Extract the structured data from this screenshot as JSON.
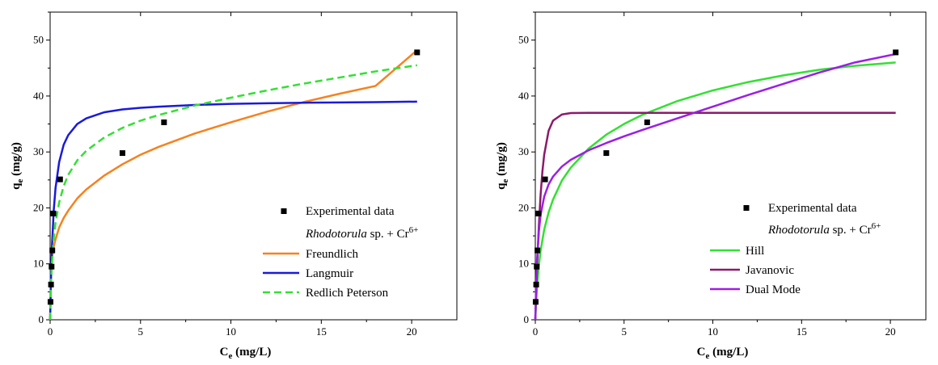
{
  "chart_data": [
    {
      "type": "scatter",
      "xlabel": {
        "main": "C",
        "sub": "e",
        "rest": " (mg/L)"
      },
      "ylabel": {
        "main": "q",
        "sub": "e",
        "rest": " (mg/g)"
      },
      "xlim": [
        0,
        22.5
      ],
      "ylim": [
        0,
        55
      ],
      "xticks": [
        0,
        5,
        10,
        15,
        20
      ],
      "yticks": [
        0,
        10,
        20,
        30,
        40,
        50
      ],
      "grid": false,
      "legend_position": "bottom-right",
      "experimental": {
        "name": "Experimental data",
        "x": [
          0.02,
          0.05,
          0.08,
          0.12,
          0.18,
          0.55,
          4.0,
          6.3,
          20.3
        ],
        "y": [
          3.2,
          6.3,
          9.5,
          12.4,
          19.0,
          25.1,
          29.8,
          35.3,
          47.8
        ]
      },
      "annotation": {
        "italic": "Rhodotorula",
        "rest": " sp. + Cr",
        "sup": "6+"
      },
      "series": [
        {
          "name": "Freundlich",
          "color": "#f5821f",
          "dash": false,
          "x": [
            0,
            0.05,
            0.1,
            0.2,
            0.3,
            0.5,
            0.75,
            1,
            1.5,
            2,
            3,
            4,
            5,
            6,
            8,
            10,
            12,
            14,
            16,
            18,
            20.3
          ],
          "y": [
            0,
            9.3,
            11.0,
            13.1,
            14.4,
            16.5,
            18.2,
            19.5,
            21.7,
            23.3,
            25.8,
            27.8,
            29.5,
            30.9,
            33.3,
            35.3,
            37.2,
            38.9,
            40.4,
            41.8,
            48.2
          ]
        },
        {
          "name": "Langmuir",
          "color": "#1a1adb",
          "dash": false,
          "x": [
            0,
            0.05,
            0.1,
            0.2,
            0.3,
            0.5,
            0.75,
            1,
            1.5,
            2,
            3,
            4,
            5,
            6,
            8,
            10,
            12,
            14,
            16,
            18,
            20.3
          ],
          "y": [
            0,
            7.8,
            13.0,
            19.6,
            23.6,
            28.2,
            31.3,
            33.0,
            35.0,
            36.0,
            37.1,
            37.6,
            37.9,
            38.1,
            38.4,
            38.6,
            38.7,
            38.8,
            38.85,
            38.9,
            39.0
          ]
        },
        {
          "name": "Redlich Peterson",
          "color": "#33e033",
          "dash": true,
          "x": [
            0,
            0.05,
            0.1,
            0.2,
            0.3,
            0.5,
            0.75,
            1,
            1.5,
            2,
            3,
            4,
            5,
            6,
            8,
            10,
            12,
            14,
            16,
            18,
            20.3
          ],
          "y": [
            0,
            6.5,
            10.2,
            14.6,
            17.4,
            21.0,
            23.9,
            25.9,
            28.5,
            30.2,
            32.6,
            34.3,
            35.6,
            36.6,
            38.3,
            39.7,
            41.0,
            42.2,
            43.3,
            44.4,
            45.5
          ]
        }
      ]
    },
    {
      "type": "scatter",
      "xlabel": {
        "main": "C",
        "sub": "e",
        "rest": " (mg/L)"
      },
      "ylabel": {
        "main": "q",
        "sub": "e",
        "rest": " (mg/g)"
      },
      "xlim": [
        0,
        22
      ],
      "ylim": [
        0,
        55
      ],
      "xticks": [
        0,
        5,
        10,
        15,
        20
      ],
      "yticks": [
        0,
        10,
        20,
        30,
        40,
        50
      ],
      "grid": false,
      "legend_position": "bottom-right",
      "experimental": {
        "name": "Experimental data",
        "x": [
          0.02,
          0.05,
          0.08,
          0.12,
          0.18,
          0.55,
          4.0,
          6.3,
          20.3
        ],
        "y": [
          3.2,
          6.3,
          9.5,
          12.4,
          19.0,
          25.1,
          29.8,
          35.3,
          47.8
        ]
      },
      "annotation": {
        "italic": "Rhodotorula",
        "rest": " sp. + Cr",
        "sup": "6+"
      },
      "series": [
        {
          "name": "Hill",
          "color": "#33e033",
          "dash": false,
          "x": [
            0,
            0.05,
            0.1,
            0.2,
            0.3,
            0.5,
            0.75,
            1,
            1.5,
            2,
            3,
            4,
            5,
            6,
            8,
            10,
            12,
            14,
            16,
            18,
            20.3
          ],
          "y": [
            0,
            3.5,
            6.0,
            9.7,
            12.4,
            16.1,
            19.2,
            21.5,
            24.9,
            27.2,
            30.6,
            33.1,
            35.0,
            36.6,
            39.1,
            41.0,
            42.5,
            43.7,
            44.7,
            45.4,
            46.0
          ]
        },
        {
          "name": "Javanovic",
          "color": "#8b1a6b",
          "dash": false,
          "x": [
            0,
            0.05,
            0.1,
            0.2,
            0.3,
            0.4,
            0.5,
            0.75,
            1,
            1.5,
            2,
            3,
            5,
            10,
            15,
            20.3
          ],
          "y": [
            0,
            5.0,
            9.5,
            16.8,
            22.4,
            26.5,
            29.5,
            33.8,
            35.6,
            36.7,
            36.95,
            37.0,
            37.0,
            37.0,
            37.0,
            37.0
          ]
        },
        {
          "name": "Dual Mode",
          "color": "#9b1ee6",
          "dash": false,
          "x": [
            0,
            0.05,
            0.1,
            0.2,
            0.3,
            0.5,
            0.75,
            1,
            1.5,
            2,
            3,
            4,
            5,
            6,
            8,
            10,
            12,
            14,
            16,
            18,
            20.3
          ],
          "y": [
            0,
            6.5,
            10.8,
            15.8,
            18.8,
            22.0,
            24.2,
            25.6,
            27.4,
            28.6,
            30.3,
            31.6,
            32.8,
            33.9,
            36.0,
            38.1,
            40.2,
            42.2,
            44.2,
            46.0,
            47.5
          ]
        }
      ]
    }
  ]
}
